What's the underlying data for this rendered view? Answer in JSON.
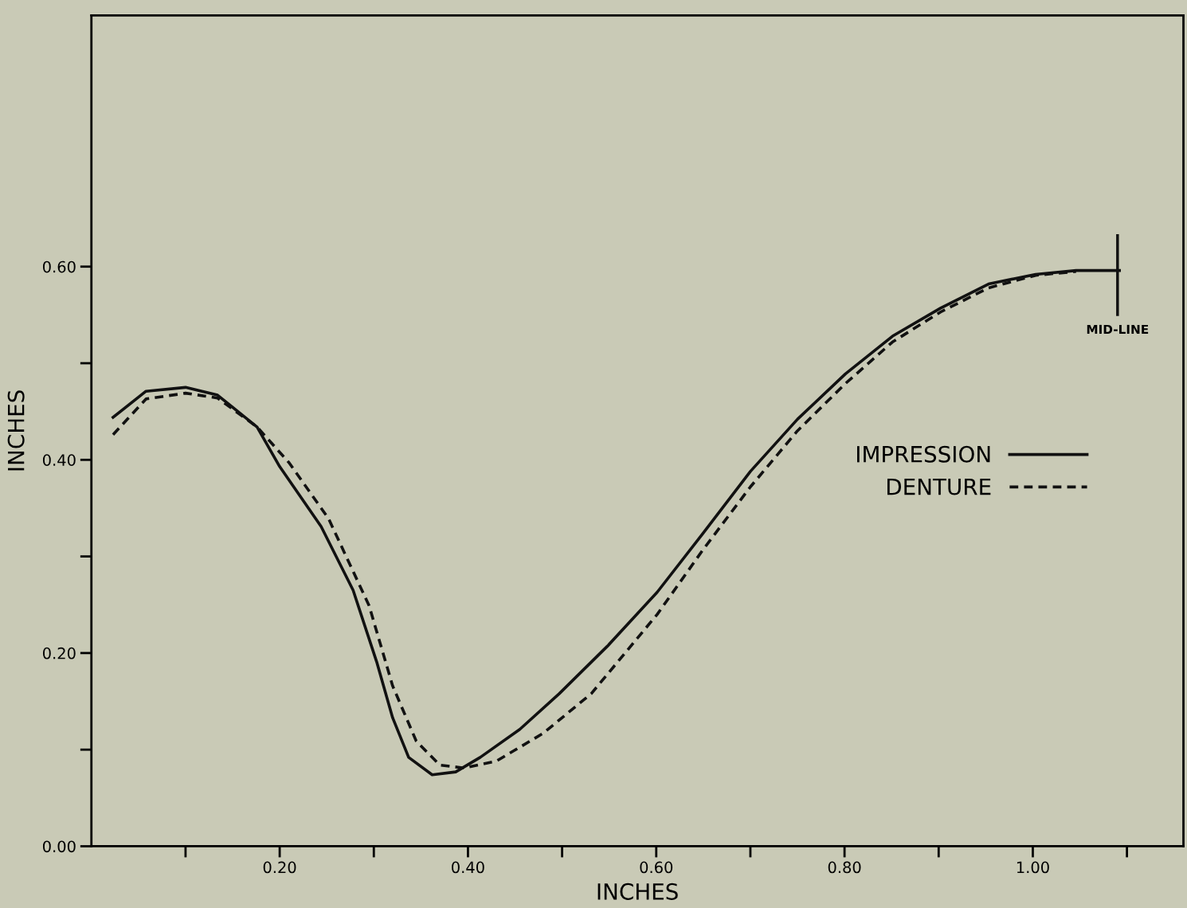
{
  "chart_data": {
    "type": "line",
    "xlabel": "INCHES",
    "ylabel": "INCHES",
    "xlim": [
      0,
      1.16
    ],
    "ylim": [
      0,
      0.86
    ],
    "xticks": [
      {
        "value": 0.1,
        "label": null
      },
      {
        "value": 0.2,
        "label": "0.20"
      },
      {
        "value": 0.3,
        "label": null
      },
      {
        "value": 0.4,
        "label": "0.40"
      },
      {
        "value": 0.5,
        "label": null
      },
      {
        "value": 0.6,
        "label": "0.60"
      },
      {
        "value": 0.7,
        "label": null
      },
      {
        "value": 0.8,
        "label": "0.80"
      },
      {
        "value": 0.9,
        "label": null
      },
      {
        "value": 1.0,
        "label": "1.00"
      },
      {
        "value": 1.1,
        "label": null
      }
    ],
    "yticks": [
      {
        "value": 0,
        "label": "0.00"
      },
      {
        "value": 0.1,
        "label": null
      },
      {
        "value": 0.2,
        "label": "0.20"
      },
      {
        "value": 0.3,
        "label": null
      },
      {
        "value": 0.4,
        "label": "0.40"
      },
      {
        "value": 0.5,
        "label": null
      },
      {
        "value": 0.6,
        "label": "0.60"
      }
    ],
    "grid": false,
    "legend": "right",
    "marker": "none",
    "ref_lines": [
      {
        "axis": "x",
        "value": 1.09,
        "label": "MID-LINE",
        "color": "#111111",
        "line_style": "solid"
      }
    ],
    "series": [
      {
        "name": "IMPRESSION",
        "color": "#111111",
        "line_style": "solid",
        "x": [
          0.023,
          0.058,
          0.1,
          0.134,
          0.176,
          0.2,
          0.244,
          0.278,
          0.303,
          0.32,
          0.337,
          0.362,
          0.387,
          0.413,
          0.455,
          0.497,
          0.548,
          0.601,
          0.649,
          0.7,
          0.75,
          0.801,
          0.851,
          0.902,
          0.953,
          1.003,
          1.046,
          1.092
        ],
        "values": [
          0.444,
          0.471,
          0.475,
          0.467,
          0.434,
          0.393,
          0.331,
          0.265,
          0.191,
          0.133,
          0.092,
          0.074,
          0.077,
          0.092,
          0.121,
          0.158,
          0.207,
          0.263,
          0.323,
          0.388,
          0.442,
          0.489,
          0.528,
          0.557,
          0.582,
          0.592,
          0.596,
          0.596
        ]
      },
      {
        "name": "DENTURE",
        "color": "#111111",
        "line_style": "dashed",
        "x": [
          0.023,
          0.058,
          0.1,
          0.134,
          0.176,
          0.21,
          0.252,
          0.295,
          0.32,
          0.345,
          0.37,
          0.396,
          0.43,
          0.48,
          0.531,
          0.601,
          0.649,
          0.7,
          0.75,
          0.801,
          0.851,
          0.902,
          0.953,
          1.003,
          1.046
        ],
        "values": [
          0.426,
          0.463,
          0.469,
          0.464,
          0.434,
          0.397,
          0.339,
          0.249,
          0.166,
          0.109,
          0.084,
          0.081,
          0.088,
          0.117,
          0.158,
          0.24,
          0.306,
          0.372,
          0.43,
          0.479,
          0.522,
          0.553,
          0.578,
          0.591,
          0.595
        ]
      }
    ]
  }
}
